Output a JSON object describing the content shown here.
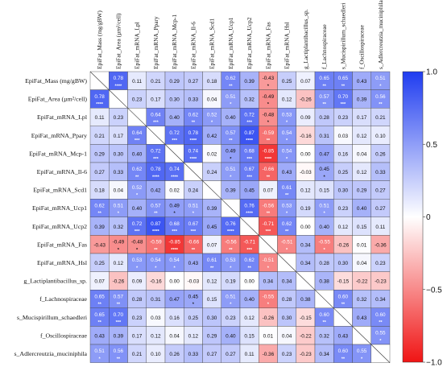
{
  "chart_data": {
    "type": "heatmap",
    "title": "",
    "labels": [
      "EpiFat_Mass (mg/gBW)",
      "EpiFat_Area (µm²/cell)",
      "EpiFat_mRNA_Lpl",
      "EpiFat_mRNA_Ppary",
      "EpiFat_mRNA_Mcp-1",
      "EpiFat_mRNA_Il-6",
      "EpiFat_mRNA_Scd1",
      "EpiFat_mRNA_Ucp1",
      "EpiFat_mRNA_Ucp2",
      "EpiFat_mRNA_Fas",
      "EpiFat_mRNA_Hsl",
      "g_Lactiplantibacillus_sp.",
      "f_Lachnospiraceae",
      "s_Mucispirillum_schaedleri",
      "f_Oscillospiraceae",
      "s_Adlercreutzia_muciniphila"
    ],
    "values": [
      [
        null,
        0.78,
        0.11,
        0.21,
        0.29,
        0.27,
        0.18,
        0.62,
        0.39,
        -0.43,
        0.25,
        0.07,
        0.65,
        0.65,
        0.43,
        0.51
      ],
      [
        0.78,
        null,
        0.23,
        0.17,
        0.3,
        0.33,
        0.04,
        0.51,
        0.32,
        -0.49,
        0.12,
        -0.26,
        0.57,
        0.7,
        0.39,
        0.56
      ],
      [
        0.11,
        0.23,
        null,
        0.64,
        0.4,
        0.62,
        0.52,
        0.4,
        0.72,
        -0.48,
        0.53,
        0.09,
        0.28,
        0.23,
        0.17,
        0.21
      ],
      [
        0.21,
        0.17,
        0.64,
        null,
        0.72,
        0.78,
        0.42,
        0.57,
        0.87,
        -0.59,
        0.54,
        -0.16,
        0.31,
        0.03,
        0.12,
        0.1
      ],
      [
        0.29,
        0.3,
        0.4,
        0.72,
        null,
        0.74,
        0.02,
        0.49,
        0.68,
        -0.85,
        0.54,
        0.0,
        0.47,
        0.16,
        0.04,
        0.26
      ],
      [
        0.27,
        0.33,
        0.62,
        0.78,
        0.74,
        null,
        0.24,
        0.51,
        0.67,
        -0.66,
        0.43,
        -0.03,
        0.45,
        0.25,
        0.12,
        0.33
      ],
      [
        0.18,
        0.04,
        0.52,
        0.42,
        0.02,
        0.24,
        null,
        0.39,
        0.45,
        0.07,
        0.61,
        0.12,
        0.15,
        0.3,
        0.29,
        0.27
      ],
      [
        0.62,
        0.51,
        0.4,
        0.57,
        0.49,
        0.51,
        0.39,
        null,
        0.76,
        -0.56,
        0.53,
        0.19,
        0.51,
        0.23,
        0.4,
        0.27
      ],
      [
        0.39,
        0.32,
        0.72,
        0.87,
        0.68,
        0.67,
        0.45,
        0.76,
        null,
        -0.71,
        0.62,
        0.0,
        0.4,
        0.12,
        0.15,
        0.11
      ],
      [
        -0.43,
        -0.49,
        -0.48,
        -0.59,
        -0.85,
        -0.66,
        0.07,
        -0.56,
        -0.71,
        null,
        -0.51,
        0.34,
        -0.55,
        -0.26,
        0.01,
        -0.36
      ],
      [
        0.25,
        0.12,
        0.53,
        0.54,
        0.54,
        0.43,
        0.61,
        0.53,
        0.62,
        -0.51,
        null,
        0.34,
        0.28,
        0.3,
        0.04,
        0.23
      ],
      [
        0.07,
        -0.26,
        0.09,
        -0.16,
        0.0,
        -0.03,
        0.12,
        0.19,
        0.0,
        0.34,
        0.34,
        null,
        0.38,
        -0.15,
        -0.22,
        -0.23
      ],
      [
        0.65,
        0.57,
        0.28,
        0.31,
        0.47,
        0.45,
        0.15,
        0.51,
        0.4,
        -0.55,
        0.28,
        0.38,
        null,
        0.6,
        0.32,
        0.34
      ],
      [
        0.65,
        0.7,
        0.23,
        0.03,
        0.16,
        0.25,
        0.3,
        0.23,
        0.12,
        -0.26,
        0.3,
        -0.15,
        0.6,
        null,
        0.43,
        0.6
      ],
      [
        0.43,
        0.39,
        0.17,
        0.12,
        0.04,
        0.12,
        0.29,
        0.4,
        0.15,
        0.01,
        0.04,
        -0.22,
        0.32,
        0.43,
        null,
        0.55
      ],
      [
        0.51,
        0.56,
        0.21,
        0.1,
        0.26,
        0.33,
        0.27,
        0.27,
        0.11,
        -0.36,
        0.23,
        -0.23,
        0.34,
        0.6,
        0.55,
        null
      ]
    ],
    "stars": [
      [
        "",
        "****",
        "",
        "",
        "",
        "",
        "",
        "**",
        "",
        "*",
        "",
        "",
        "**",
        "**",
        "",
        "*"
      ],
      [
        "****",
        "",
        "",
        "",
        "",
        "",
        "",
        "*",
        "",
        "*",
        "",
        "",
        "**",
        "***",
        "",
        "**"
      ],
      [
        "",
        "",
        "",
        "***",
        "",
        "**",
        "*",
        "",
        "***",
        "*",
        "*",
        "",
        "",
        "",
        "",
        ""
      ],
      [
        "",
        "",
        "***",
        "",
        "***",
        "****",
        "",
        "**",
        "****",
        "**",
        "*",
        "",
        "",
        "",
        "",
        ""
      ],
      [
        "",
        "",
        "",
        "***",
        "",
        "****",
        "",
        "*",
        "***",
        "****",
        "*",
        "",
        "",
        "",
        "",
        ""
      ],
      [
        "",
        "",
        "**",
        "****",
        "****",
        "",
        "",
        "*",
        "***",
        "**",
        "",
        "",
        "*",
        "",
        "",
        ""
      ],
      [
        "",
        "",
        "*",
        "",
        "",
        "",
        "",
        "",
        "",
        "",
        "**",
        "",
        "",
        "",
        "",
        ""
      ],
      [
        "**",
        "*",
        "",
        "**",
        "*",
        "*",
        "",
        "",
        "****",
        "**",
        "*",
        "",
        "*",
        "",
        "",
        ""
      ],
      [
        "",
        "",
        "***",
        "****",
        "***",
        "***",
        "",
        "****",
        "",
        "***",
        "**",
        "",
        "",
        "",
        "",
        ""
      ],
      [
        "",
        "*",
        "*",
        "**",
        "****",
        "**",
        "",
        "**",
        "***",
        "",
        "*",
        "",
        "*",
        "",
        "",
        ""
      ],
      [
        "",
        "",
        "*",
        "*",
        "*",
        "",
        "**",
        "*",
        "**",
        "*",
        "",
        "",
        "",
        "",
        "",
        ""
      ],
      [
        "",
        "",
        "",
        "",
        "",
        "",
        "",
        "",
        "",
        "",
        "",
        "",
        "",
        "",
        "",
        ""
      ],
      [
        "**",
        "**",
        "",
        "",
        "",
        "*",
        "",
        "*",
        "",
        "*",
        "",
        "",
        "",
        "**",
        "",
        ""
      ],
      [
        "**",
        "***",
        "",
        "",
        "",
        "",
        "",
        "",
        "",
        "",
        "",
        "",
        "**",
        "",
        "",
        "**"
      ],
      [
        "",
        "",
        "",
        "",
        "",
        "",
        "",
        "",
        "",
        "",
        "",
        "",
        "",
        "",
        "",
        "*"
      ],
      [
        "*",
        "**",
        "",
        "",
        "",
        "",
        "",
        "",
        "",
        "",
        "",
        "",
        "",
        "**",
        "*",
        ""
      ]
    ],
    "colorbar": {
      "min": -1.0,
      "max": 1.0,
      "ticks": [
        1.0,
        0.5,
        0,
        -0.5,
        -1.0
      ],
      "tick_labels": [
        "1.0",
        "0.5",
        "0",
        "−0.5",
        "−1.0"
      ],
      "color_positive": "#1f3cf0",
      "color_neutral": "#ffffff",
      "color_negative": "#f01414"
    },
    "grid": true,
    "legend": "right"
  }
}
